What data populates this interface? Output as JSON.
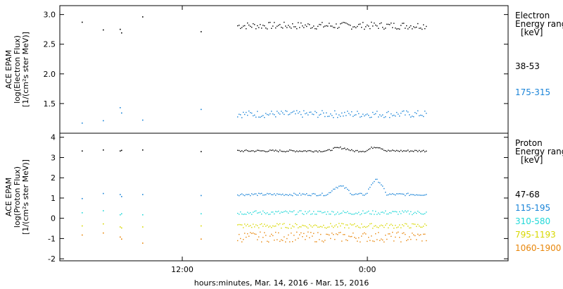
{
  "chart_data": {
    "type": "scatter",
    "xlabel": "hours:minutes, Mar. 14, 2016 - Mar. 15, 2016",
    "x_ticks": [
      "12:00",
      "0:00"
    ],
    "panels": [
      {
        "id": "electron",
        "ylabel_lines": [
          "ACE EPAM",
          "log(Electron Flux)",
          "[1/(cm²s ster MeV)]"
        ],
        "ylim": [
          1.0,
          3.15
        ],
        "y_ticks": [
          {
            "value": 1.5,
            "label": "1.5"
          },
          {
            "value": 2.0,
            "label": "2.0"
          },
          {
            "value": 2.5,
            "label": "2.5"
          },
          {
            "value": 3.0,
            "label": "3.0"
          }
        ],
        "legend_title_lines": [
          "Electron",
          "Energy ranges",
          "[keV]"
        ],
        "series": [
          {
            "name": "38-53",
            "color": "#000000",
            "sparse_x": [
              0.12,
              0.23,
              0.33,
              0.34,
              0.46,
              0.78
            ],
            "sparse_y": [
              2.88,
              2.75,
              2.76,
              2.7,
              2.97,
              2.72
            ],
            "dense_x": [
              1.0,
              2.0
            ],
            "dense_mean": 2.82,
            "dense_amp": 0.06
          },
          {
            "name": "175-315",
            "color": "#1a84d8",
            "sparse_x": [
              0.12,
              0.23,
              0.33,
              0.34,
              0.46,
              0.78
            ],
            "sparse_y": [
              1.18,
              1.22,
              1.44,
              1.35,
              1.23,
              1.41
            ],
            "dense_x": [
              1.0,
              2.0
            ],
            "dense_mean": 1.33,
            "dense_amp": 0.06
          }
        ]
      },
      {
        "id": "proton",
        "ylabel_lines": [
          "ACE EPAM",
          "log(Proton Flux)",
          "[1/(cm²s ster MeV)]"
        ],
        "ylim": [
          -2.1,
          4.2
        ],
        "y_ticks": [
          {
            "value": -2,
            "label": "-2"
          },
          {
            "value": -1,
            "label": "-1"
          },
          {
            "value": 0,
            "label": "0"
          },
          {
            "value": 1,
            "label": "1"
          },
          {
            "value": 2,
            "label": "2"
          },
          {
            "value": 3,
            "label": "3"
          },
          {
            "value": 4,
            "label": "4"
          }
        ],
        "legend_title_lines": [
          "Proton",
          "Energy ranges",
          "[keV]"
        ],
        "series": [
          {
            "name": "47-68",
            "color": "#000000",
            "sparse_x": [
              0.12,
              0.23,
              0.33,
              0.34,
              0.46,
              0.78
            ],
            "sparse_y": [
              3.35,
              3.4,
              3.35,
              3.38,
              3.4,
              3.32
            ],
            "dense_x": [
              1.0,
              2.0
            ],
            "dense_mean": 3.35,
            "dense_amp": 0.05
          },
          {
            "name": "115-195",
            "color": "#1a84d8",
            "sparse_x": [
              0.12,
              0.23,
              0.33,
              0.34,
              0.46,
              0.78
            ],
            "sparse_y": [
              1.0,
              1.25,
              1.2,
              1.1,
              1.2,
              1.15
            ],
            "dense_x": [
              1.0,
              2.0
            ],
            "dense_mean": 1.2,
            "dense_amp": 0.06
          },
          {
            "name": "310-580",
            "color": "#22d8d8",
            "sparse_x": [
              0.12,
              0.23,
              0.33,
              0.34,
              0.46,
              0.78
            ],
            "sparse_y": [
              0.3,
              0.4,
              0.2,
              0.25,
              0.2,
              0.25
            ],
            "dense_x": [
              1.0,
              2.0
            ],
            "dense_mean": 0.3,
            "dense_amp": 0.1
          },
          {
            "name": "795-1193",
            "color": "#d8d800",
            "sparse_x": [
              0.12,
              0.23,
              0.33,
              0.34,
              0.46,
              0.78
            ],
            "sparse_y": [
              -0.35,
              -0.25,
              -0.4,
              -0.45,
              -0.4,
              -0.35
            ],
            "dense_x": [
              1.0,
              2.0
            ],
            "dense_mean": -0.35,
            "dense_amp": 0.12
          },
          {
            "name": "1060-1900",
            "color": "#e8860a",
            "sparse_x": [
              0.12,
              0.23,
              0.33,
              0.34,
              0.46,
              0.78
            ],
            "sparse_y": [
              -0.8,
              -0.7,
              -0.9,
              -1.0,
              -1.2,
              -1.0
            ],
            "dense_x": [
              1.0,
              2.0
            ],
            "dense_mean": -0.9,
            "dense_amp": 0.25
          }
        ]
      }
    ]
  }
}
